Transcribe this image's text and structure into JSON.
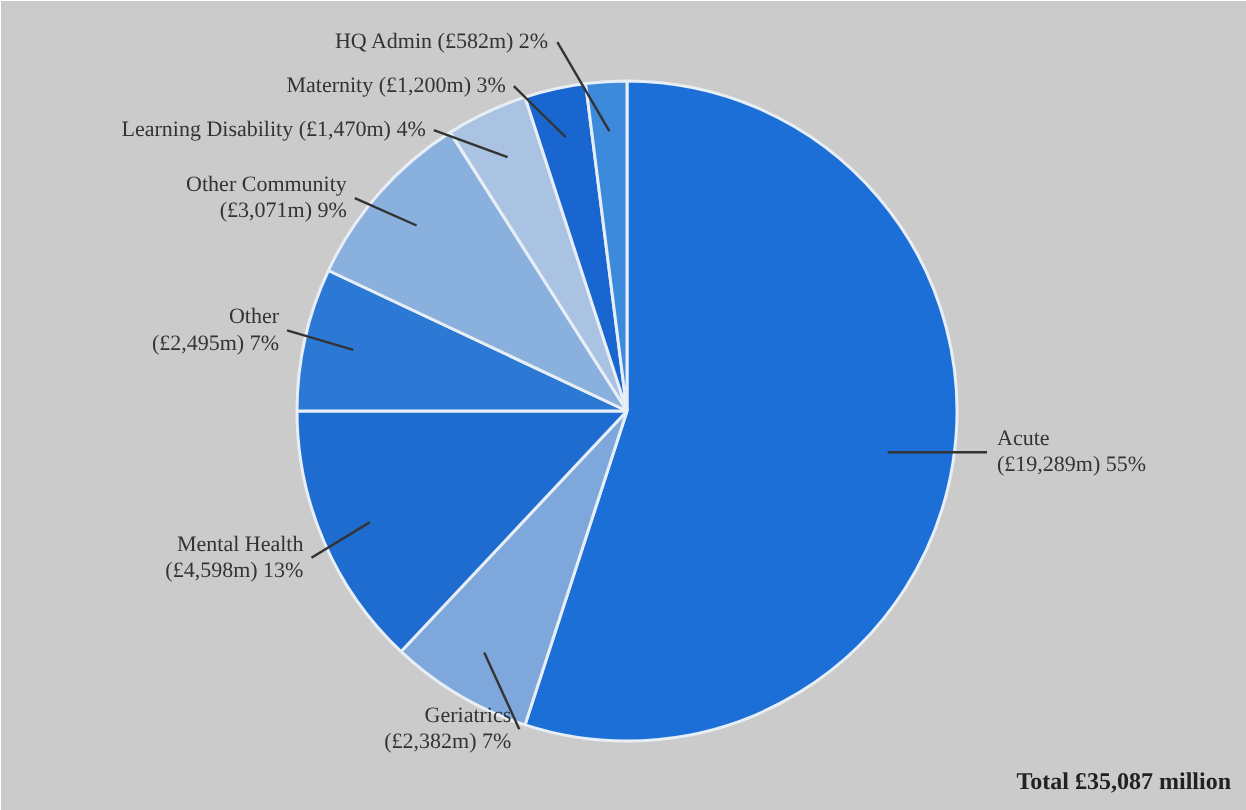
{
  "chart_data": {
    "type": "pie",
    "categories": [
      "Acute",
      "Geriatrics",
      "Mental Health",
      "Other",
      "Other Community",
      "Learning Disability",
      "Maternity",
      "HQ Admin"
    ],
    "values": [
      55,
      7,
      13,
      7,
      9,
      4,
      3,
      2
    ],
    "colors": [
      "#1c6fd6",
      "#7ea8dc",
      "#1f6cd0",
      "#2b79d5",
      "#8ab0de",
      "#aac3e2",
      "#1a66d0",
      "#3d89db"
    ],
    "value_labels": [
      "(£19,289m) 55%",
      "(£2,382m) 7%",
      "(£4,598m) 13%",
      "(£2,495m) 7%",
      "(£3,071m) 9%",
      "(£1,470m) 4%",
      "(£1,200m) 3%",
      "(£582m) 2%"
    ],
    "annotations": [
      "Total £35,087 million"
    ]
  }
}
